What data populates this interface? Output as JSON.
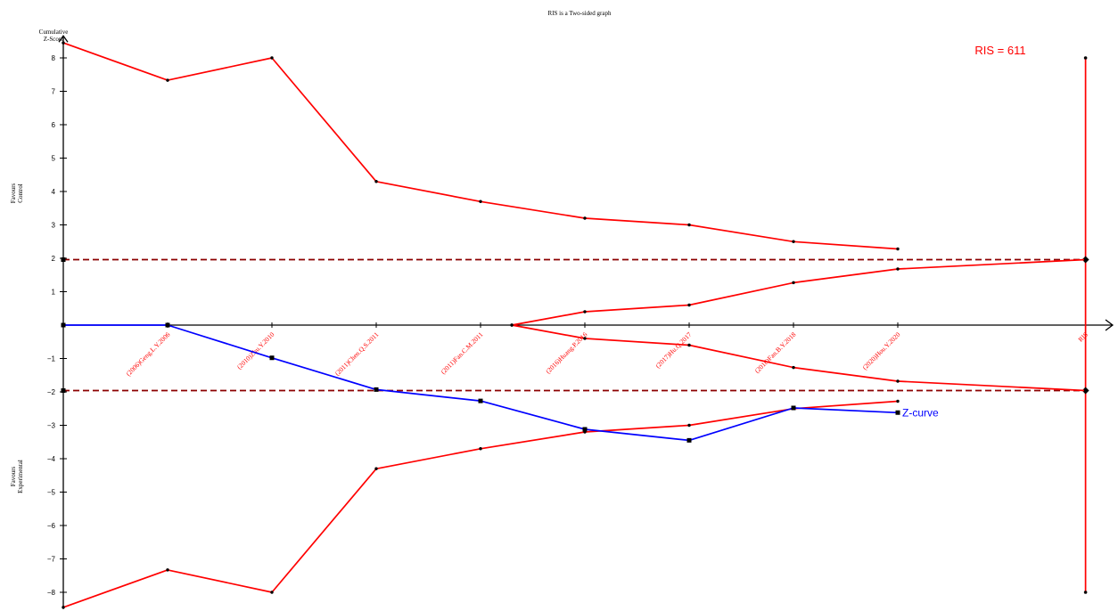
{
  "chart_data": {
    "type": "line",
    "title": "RIS is a Two-sided graph",
    "ylabel_lines": [
      "Cumulative",
      "Z-Score"
    ],
    "side_label_top": [
      "Favours",
      "Control"
    ],
    "side_label_bottom": [
      "Favours",
      "Experimental"
    ],
    "ylim": [
      -8.5,
      8.5
    ],
    "yticks": [
      -8,
      -7,
      -6,
      -5,
      -4,
      -3,
      -2,
      -1,
      1,
      2,
      3,
      4,
      5,
      6,
      7,
      8
    ],
    "categories": [
      "(2006)Geng.L.Y.2006",
      "(2010)Zhu.Y.2010",
      "(2011)Chen.Q.S.2011",
      "(2011)Fan.C.M.2011",
      "(2016)Huang.P.2016",
      "(2017)Hu.Q.2017",
      "(2018)Fan.B.Y.2018",
      "(2020)Hou.Y.2020",
      "RIS"
    ],
    "category_positions": [
      1,
      2,
      3,
      4,
      5,
      6,
      7,
      8,
      9.8
    ],
    "xlim": [
      0,
      10.6
    ],
    "conventional_boundaries": [
      1.96,
      -1.96
    ],
    "colors": {
      "boundary": "#ff0000",
      "zcurve": "#0000ff",
      "conventional": "#8b0000",
      "axis": "#000000"
    },
    "series": [
      {
        "name": "upper-monitoring-boundary",
        "x": [
          0,
          1,
          2,
          3,
          4,
          5,
          6,
          7,
          8
        ],
        "y": [
          8.45,
          7.33,
          8.0,
          4.3,
          3.7,
          3.2,
          3.0,
          2.5,
          2.28
        ]
      },
      {
        "name": "lower-monitoring-boundary",
        "x": [
          0,
          1,
          2,
          3,
          4,
          5,
          6,
          7,
          8
        ],
        "y": [
          -8.45,
          -7.33,
          -8.0,
          -4.3,
          -3.7,
          -3.2,
          -3.0,
          -2.5,
          -2.28
        ]
      },
      {
        "name": "upper-futility-boundary",
        "x": [
          4.3,
          5,
          6,
          7,
          8,
          9.8
        ],
        "y": [
          0,
          0.4,
          0.6,
          1.27,
          1.68,
          1.96
        ]
      },
      {
        "name": "lower-futility-boundary",
        "x": [
          4.3,
          5,
          6,
          7,
          8,
          9.8
        ],
        "y": [
          0,
          -0.4,
          -0.6,
          -1.27,
          -1.68,
          -1.96
        ]
      },
      {
        "name": "Z-curve",
        "x": [
          0,
          1,
          2,
          3,
          4,
          5,
          6,
          7,
          8
        ],
        "y": [
          0,
          0,
          -0.98,
          -1.93,
          -2.27,
          -3.12,
          -3.45,
          -2.48,
          -2.62
        ]
      }
    ],
    "zcurve_label": "Z-curve",
    "ris_label": "RIS = 611",
    "ris_line": {
      "x": 9.8,
      "ymin": -8,
      "ymax": 8
    }
  }
}
